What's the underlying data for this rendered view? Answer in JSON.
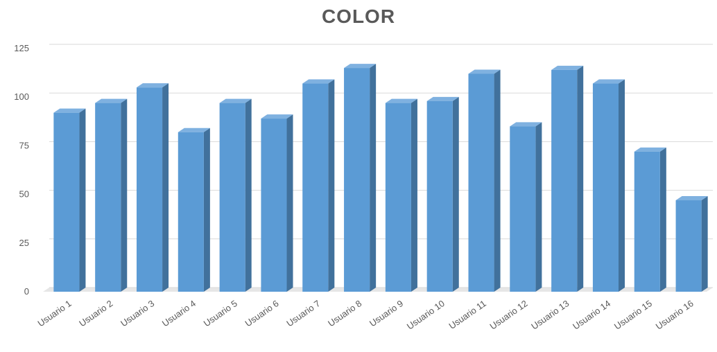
{
  "chart_data": {
    "type": "bar",
    "title": "COLOR",
    "xlabel": "",
    "ylabel": "",
    "ylim": [
      0,
      125
    ],
    "yticks": [
      0,
      25,
      50,
      75,
      100,
      125
    ],
    "grid": true,
    "style": "3d-column",
    "categories": [
      "Usuario 1",
      "Usuario 2",
      "Usuario 3",
      "Usuario 4",
      "Usuario 5",
      "Usuario 6",
      "Usuario 7",
      "Usuario 8",
      "Usuario 9",
      "Usuario 10",
      "Usuario 11",
      "Usuario 12",
      "Usuario 13",
      "Usuario 14",
      "Usuario 15",
      "Usuario 16"
    ],
    "values": [
      92,
      97,
      105,
      82,
      97,
      89,
      107,
      115,
      97,
      98,
      112,
      85,
      114,
      107,
      72,
      47
    ],
    "colors": {
      "front": "#5b9bd5",
      "side": "#41719c",
      "top": "#7fb1e0",
      "grid": "#d9d9d9",
      "floor": "#e6e6e6",
      "text": "#595959"
    }
  }
}
